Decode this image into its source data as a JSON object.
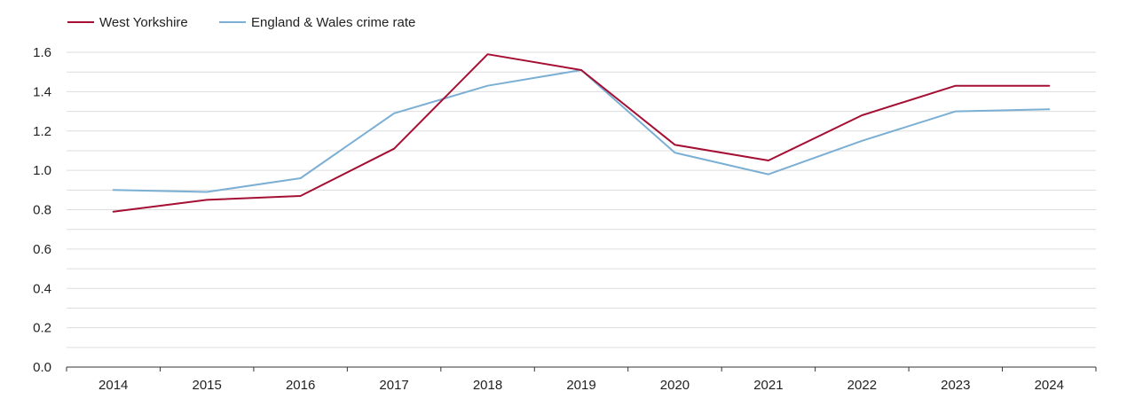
{
  "chart_data": {
    "type": "line",
    "title": "",
    "xlabel": "",
    "ylabel": "",
    "categories": [
      "2014",
      "2015",
      "2016",
      "2017",
      "2018",
      "2019",
      "2020",
      "2021",
      "2022",
      "2023",
      "2024"
    ],
    "ylim": [
      0,
      1.6
    ],
    "yticks": [
      "0.0",
      "0.2",
      "0.4",
      "0.6",
      "0.8",
      "1.0",
      "1.2",
      "1.4",
      "1.6"
    ],
    "grid": true,
    "legend_position": "top-left",
    "series": [
      {
        "name": "West Yorkshire",
        "color": "#a50f33",
        "values": [
          0.79,
          0.85,
          0.87,
          1.11,
          1.59,
          1.51,
          1.13,
          1.05,
          1.28,
          1.43,
          1.43
        ]
      },
      {
        "name": "England & Wales crime rate",
        "color": "#7bafd4",
        "values": [
          0.9,
          0.89,
          0.96,
          1.29,
          1.43,
          1.51,
          1.09,
          0.98,
          1.15,
          1.3,
          1.31
        ]
      }
    ]
  },
  "colors": {
    "grid": "#dddddd",
    "axis": "#333333",
    "text": "#222222"
  }
}
